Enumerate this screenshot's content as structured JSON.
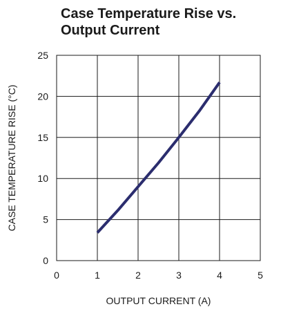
{
  "chart_data": {
    "type": "line",
    "title_lines": [
      "Case Temperature Rise vs.",
      "Output Current"
    ],
    "xlabel": "OUTPUT CURRENT (A)",
    "ylabel": "CASE TEMPERATURE RISE (°C)",
    "xlim": [
      0,
      5
    ],
    "ylim": [
      0,
      25
    ],
    "x_ticks": [
      0,
      1,
      2,
      3,
      4,
      5
    ],
    "y_ticks": [
      0,
      5,
      10,
      15,
      20,
      25
    ],
    "grid": true,
    "series": [
      {
        "x": [
          1,
          1.5,
          2,
          2.5,
          3,
          3.5,
          4
        ],
        "y": [
          3.4,
          6.1,
          9.0,
          11.9,
          15.0,
          18.2,
          21.7
        ],
        "color": "#2b2d6e"
      }
    ]
  }
}
